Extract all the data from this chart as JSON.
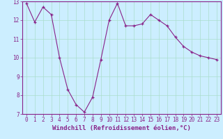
{
  "x": [
    0,
    1,
    2,
    3,
    4,
    5,
    6,
    7,
    8,
    9,
    10,
    11,
    12,
    13,
    14,
    15,
    16,
    17,
    18,
    19,
    20,
    21,
    22,
    23
  ],
  "y": [
    12.9,
    11.9,
    12.7,
    12.3,
    10.0,
    8.3,
    7.5,
    7.1,
    7.9,
    9.9,
    12.0,
    12.9,
    11.7,
    11.7,
    11.8,
    12.3,
    12.0,
    11.7,
    11.1,
    10.6,
    10.3,
    10.1,
    10.0,
    9.9
  ],
  "line_color": "#882288",
  "marker": "+",
  "background_color": "#cceeff",
  "grid_color": "#aaddcc",
  "xlabel": "Windchill (Refroidissement éolien,°C)",
  "ylim": [
    7,
    13
  ],
  "xlim": [
    -0.5,
    23.5
  ],
  "yticks": [
    7,
    8,
    9,
    10,
    11,
    12,
    13
  ],
  "xticks": [
    0,
    1,
    2,
    3,
    4,
    5,
    6,
    7,
    8,
    9,
    10,
    11,
    12,
    13,
    14,
    15,
    16,
    17,
    18,
    19,
    20,
    21,
    22,
    23
  ],
  "tick_color": "#882288",
  "label_color": "#882288",
  "font_size": 5.5,
  "xlabel_fontsize": 6.5,
  "linewidth": 0.8,
  "markersize": 3.5,
  "markeredgewidth": 0.9
}
